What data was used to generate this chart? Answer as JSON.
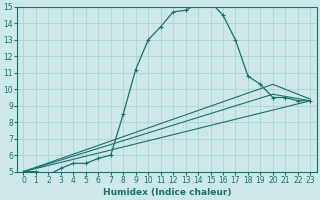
{
  "xlabel": "Humidex (Indice chaleur)",
  "bg_color": "#cce8e8",
  "line_color": "#1a7070",
  "xlim": [
    -0.5,
    23.5
  ],
  "ylim": [
    5,
    15
  ],
  "xticks": [
    0,
    1,
    2,
    3,
    4,
    5,
    6,
    7,
    8,
    9,
    10,
    11,
    12,
    13,
    14,
    15,
    16,
    17,
    18,
    19,
    20,
    21,
    22,
    23
  ],
  "yticks": [
    5,
    6,
    7,
    8,
    9,
    10,
    11,
    12,
    13,
    14,
    15
  ],
  "main_line": {
    "x": [
      0,
      1,
      2,
      3,
      4,
      5,
      6,
      7,
      8,
      9,
      10,
      11,
      12,
      13,
      14,
      15,
      16,
      17,
      18,
      19,
      20,
      21,
      22,
      23
    ],
    "y": [
      5.0,
      5.0,
      4.8,
      5.2,
      5.5,
      5.5,
      5.8,
      6.0,
      8.5,
      11.2,
      13.0,
      13.8,
      14.7,
      14.8,
      15.2,
      15.3,
      14.5,
      13.0,
      10.8,
      10.3,
      9.5,
      9.5,
      9.3,
      9.3
    ]
  },
  "straight_lines": [
    {
      "x": [
        0,
        23
      ],
      "y": [
        5.0,
        9.3
      ]
    },
    {
      "x": [
        0,
        20,
        23
      ],
      "y": [
        5.0,
        9.7,
        9.3
      ]
    },
    {
      "x": [
        0,
        20,
        23
      ],
      "y": [
        5.0,
        10.3,
        9.4
      ]
    }
  ],
  "grid_color": "#aacece",
  "tick_fontsize": 5.5,
  "label_fontsize": 6.5,
  "marker": "+"
}
